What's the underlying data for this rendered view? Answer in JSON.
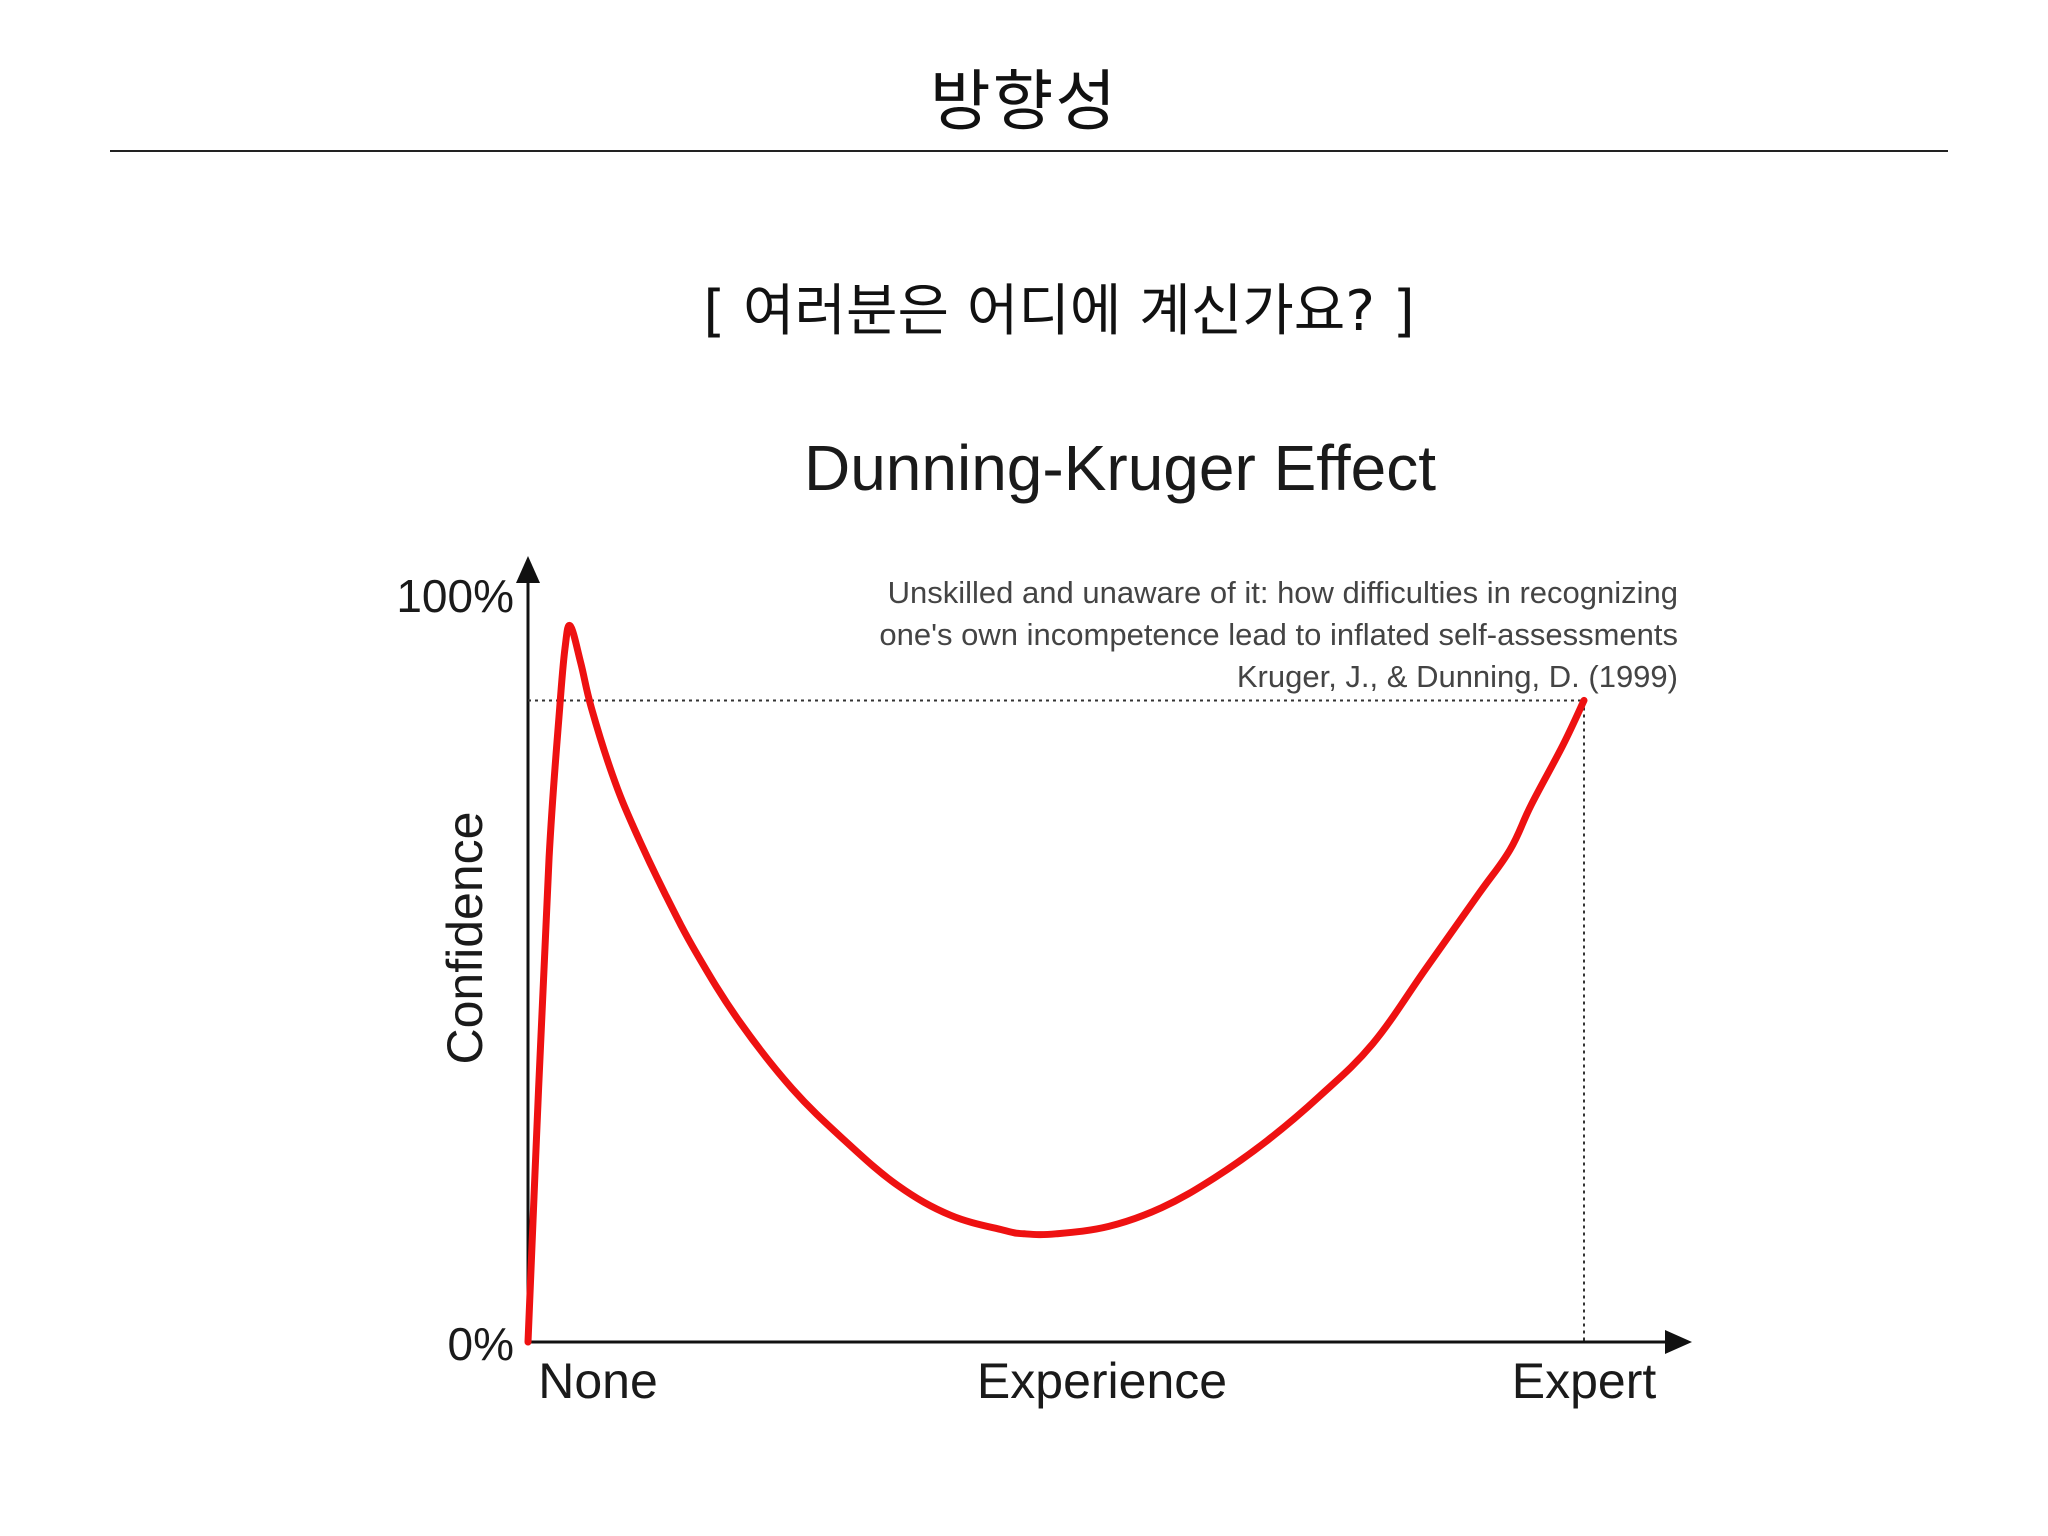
{
  "slide": {
    "title": "방향성",
    "question": "[ 여러분은 어디에 계신가요? ]"
  },
  "chart_data": {
    "type": "line",
    "title": "Dunning-Kruger Effect",
    "subtitle_lines": [
      "Unskilled and unaware of it: how difficulties in recognizing",
      "one's own incompetence lead to inflated self-assessments",
      "Kruger, J., & Dunning, D. (1999)"
    ],
    "xlabel": "Experience",
    "ylabel": "Confidence",
    "x_tick_labels": [
      "None",
      "Expert"
    ],
    "y_tick_labels": [
      "0%",
      "100%"
    ],
    "xlim": [
      0,
      100
    ],
    "ylim": [
      0,
      100
    ],
    "grid": false,
    "series_color": "#ee1111",
    "series": [
      {
        "x": [
          0,
          1,
          2,
          3,
          3.5,
          4,
          5,
          6,
          8,
          10,
          13,
          16,
          20,
          25,
          30,
          35,
          40,
          45,
          47,
          50,
          55,
          60,
          65,
          70,
          75,
          80,
          85,
          90,
          93,
          95,
          98,
          100
        ],
        "values": [
          0,
          34,
          65,
          85,
          93,
          96,
          91,
          85,
          76,
          69,
          60,
          52,
          43,
          34,
          27,
          21,
          17,
          15,
          14.5,
          14.5,
          15.5,
          18,
          22,
          27,
          33,
          40,
          50,
          60,
          66,
          72,
          80,
          86
        ]
      }
    ],
    "annotations": [
      {
        "type": "dotted-reference",
        "x": 100,
        "y": 86
      }
    ]
  }
}
